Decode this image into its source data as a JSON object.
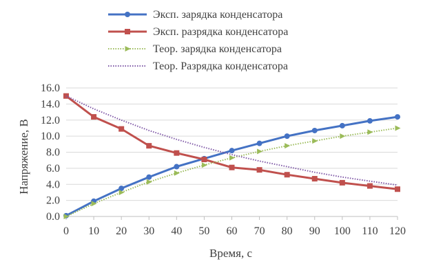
{
  "chart_data": {
    "type": "line",
    "title": "",
    "xlabel": "Время, с",
    "ylabel": "Напряжение, В",
    "xlim": [
      0,
      120
    ],
    "ylim": [
      0,
      16
    ],
    "grid": "horizontal",
    "legend_position": "top",
    "x": [
      0,
      10,
      20,
      30,
      40,
      50,
      60,
      70,
      80,
      90,
      100,
      110,
      120
    ],
    "x_tick_labels": [
      "0",
      "10",
      "20",
      "30",
      "40",
      "50",
      "60",
      "70",
      "80",
      "90",
      "100",
      "110",
      "120"
    ],
    "y_tick_labels": [
      "0.0",
      "2.0",
      "4.0",
      "6.0",
      "8.0",
      "10.0",
      "12.0",
      "14.0",
      "16.0"
    ],
    "series": [
      {
        "name": "Эксп. зарядка конденсатора",
        "color": "#4472C4",
        "style": "solid",
        "marker": "circle",
        "values": [
          0.1,
          1.9,
          3.5,
          4.9,
          6.2,
          7.2,
          8.2,
          9.1,
          10.0,
          10.7,
          11.3,
          11.9,
          12.4
        ]
      },
      {
        "name": "Эксп. разрядка конденсатора",
        "color": "#C0504D",
        "style": "solid",
        "marker": "square",
        "values": [
          15.0,
          12.4,
          10.9,
          8.8,
          7.9,
          7.1,
          6.1,
          5.8,
          5.2,
          4.7,
          4.2,
          3.8,
          3.4
        ]
      },
      {
        "name": "Теор. зарядка конденсатора",
        "color": "#9BBB59",
        "style": "dotted",
        "marker": "triangle",
        "values": [
          0.0,
          1.6,
          3.0,
          4.3,
          5.4,
          6.4,
          7.3,
          8.1,
          8.8,
          9.4,
          10.0,
          10.5,
          11.0
        ]
      },
      {
        "name": "Теор. Разрядка конденсатора",
        "color": "#7E57A6",
        "style": "dotted",
        "marker": "none",
        "values": [
          15.0,
          13.4,
          12.0,
          10.7,
          9.6,
          8.6,
          7.7,
          6.9,
          6.2,
          5.5,
          4.9,
          4.4,
          3.9
        ]
      }
    ]
  }
}
